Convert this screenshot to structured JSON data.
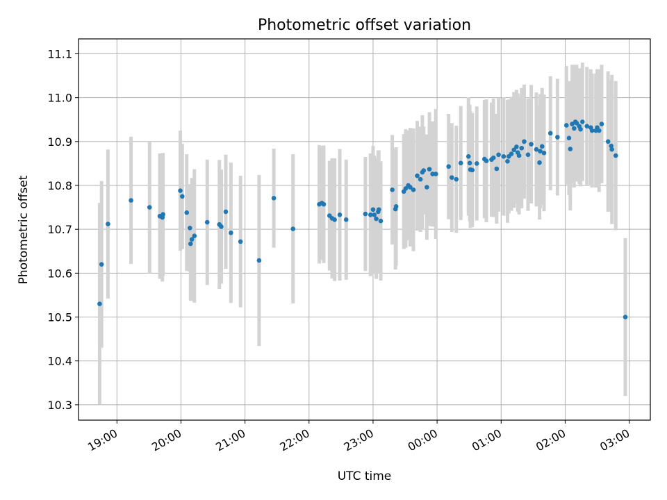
{
  "chart_data": {
    "type": "scatter",
    "title": "Photometric offset variation",
    "xlabel": "UTC time",
    "ylabel": "Photometric offset",
    "grid": true,
    "x_ticks": [
      "19:00",
      "20:00",
      "21:00",
      "22:00",
      "23:00",
      "00:00",
      "01:00",
      "02:00",
      "03:00"
    ],
    "y_ticks": [
      "10.3",
      "10.4",
      "10.5",
      "10.6",
      "10.7",
      "10.8",
      "10.9",
      "11.0",
      "11.1"
    ],
    "x_unit": "hours",
    "xlim": [
      18.4,
      27.33
    ],
    "ylim": [
      10.265,
      11.134
    ],
    "colors": {
      "point": "#1f77b4",
      "errorbar": "#d3d3d3",
      "grid": "#b0b0b0"
    },
    "series": [
      {
        "points": [
          {
            "x": 18.73,
            "y": 10.53,
            "err": 0.23
          },
          {
            "x": 18.76,
            "y": 10.62,
            "err": 0.19
          },
          {
            "x": 18.86,
            "y": 10.712,
            "err": 0.17
          },
          {
            "x": 19.22,
            "y": 10.766,
            "err": 0.145
          },
          {
            "x": 19.51,
            "y": 10.75,
            "err": 0.15
          },
          {
            "x": 19.67,
            "y": 10.73,
            "err": 0.143
          },
          {
            "x": 19.71,
            "y": 10.727,
            "err": 0.146
          },
          {
            "x": 19.72,
            "y": 10.734,
            "err": 0.14
          },
          {
            "x": 19.99,
            "y": 10.788,
            "err": 0.137
          },
          {
            "x": 20.02,
            "y": 10.775,
            "err": 0.12
          },
          {
            "x": 20.09,
            "y": 10.738,
            "err": 0.133
          },
          {
            "x": 20.14,
            "y": 10.703,
            "err": 0.1
          },
          {
            "x": 20.15,
            "y": 10.667,
            "err": 0.13
          },
          {
            "x": 20.17,
            "y": 10.677,
            "err": 0.14
          },
          {
            "x": 20.21,
            "y": 10.685,
            "err": 0.152
          },
          {
            "x": 20.41,
            "y": 10.716,
            "err": 0.143
          },
          {
            "x": 20.6,
            "y": 10.711,
            "err": 0.147
          },
          {
            "x": 20.63,
            "y": 10.706,
            "err": 0.13
          },
          {
            "x": 20.7,
            "y": 10.74,
            "err": 0.13
          },
          {
            "x": 20.78,
            "y": 10.692,
            "err": 0.16
          },
          {
            "x": 20.93,
            "y": 10.672,
            "err": 0.15
          },
          {
            "x": 21.22,
            "y": 10.629,
            "err": 0.195
          },
          {
            "x": 21.45,
            "y": 10.771,
            "err": 0.113
          },
          {
            "x": 21.75,
            "y": 10.701,
            "err": 0.17
          },
          {
            "x": 22.16,
            "y": 10.757,
            "err": 0.135
          },
          {
            "x": 22.2,
            "y": 10.76,
            "err": 0.13
          },
          {
            "x": 22.23,
            "y": 10.757,
            "err": 0.134
          },
          {
            "x": 22.32,
            "y": 10.731,
            "err": 0.125
          },
          {
            "x": 22.36,
            "y": 10.725,
            "err": 0.137
          },
          {
            "x": 22.4,
            "y": 10.722,
            "err": 0.14
          },
          {
            "x": 22.48,
            "y": 10.733,
            "err": 0.15
          },
          {
            "x": 22.58,
            "y": 10.722,
            "err": 0.137
          },
          {
            "x": 22.88,
            "y": 10.735,
            "err": 0.13
          },
          {
            "x": 22.96,
            "y": 10.733,
            "err": 0.14
          },
          {
            "x": 23.0,
            "y": 10.745,
            "err": 0.145
          },
          {
            "x": 23.02,
            "y": 10.733,
            "err": 0.135
          },
          {
            "x": 23.05,
            "y": 10.724,
            "err": 0.137
          },
          {
            "x": 23.08,
            "y": 10.74,
            "err": 0.14
          },
          {
            "x": 23.09,
            "y": 10.745,
            "err": 0.135
          },
          {
            "x": 23.12,
            "y": 10.719,
            "err": 0.136
          },
          {
            "x": 23.3,
            "y": 10.79,
            "err": 0.125
          },
          {
            "x": 23.35,
            "y": 10.746,
            "err": 0.138
          },
          {
            "x": 23.36,
            "y": 10.752,
            "err": 0.135
          },
          {
            "x": 23.48,
            "y": 10.786,
            "err": 0.131
          },
          {
            "x": 23.51,
            "y": 10.793,
            "err": 0.135
          },
          {
            "x": 23.55,
            "y": 10.8,
            "err": 0.125
          },
          {
            "x": 23.58,
            "y": 10.796,
            "err": 0.135
          },
          {
            "x": 23.63,
            "y": 10.79,
            "err": 0.14
          },
          {
            "x": 23.69,
            "y": 10.822,
            "err": 0.125
          },
          {
            "x": 23.74,
            "y": 10.814,
            "err": 0.12
          },
          {
            "x": 23.77,
            "y": 10.83,
            "err": 0.13
          },
          {
            "x": 23.79,
            "y": 10.834,
            "err": 0.1
          },
          {
            "x": 23.84,
            "y": 10.796,
            "err": 0.12
          },
          {
            "x": 23.88,
            "y": 10.837,
            "err": 0.13
          },
          {
            "x": 23.93,
            "y": 10.826,
            "err": 0.12
          },
          {
            "x": 23.98,
            "y": 10.826,
            "err": 0.148
          },
          {
            "x": 24.18,
            "y": 10.843,
            "err": 0.12
          },
          {
            "x": 24.23,
            "y": 10.818,
            "err": 0.124
          },
          {
            "x": 24.3,
            "y": 10.814,
            "err": 0.122
          },
          {
            "x": 24.37,
            "y": 10.851,
            "err": 0.13
          },
          {
            "x": 24.49,
            "y": 10.866,
            "err": 0.135
          },
          {
            "x": 24.51,
            "y": 10.851,
            "err": 0.133
          },
          {
            "x": 24.52,
            "y": 10.836,
            "err": 0.133
          },
          {
            "x": 24.55,
            "y": 10.835,
            "err": 0.13
          },
          {
            "x": 24.62,
            "y": 10.85,
            "err": 0.13
          },
          {
            "x": 24.74,
            "y": 10.86,
            "err": 0.135
          },
          {
            "x": 24.77,
            "y": 10.856,
            "err": 0.14
          },
          {
            "x": 24.85,
            "y": 10.859,
            "err": 0.13
          },
          {
            "x": 24.88,
            "y": 10.863,
            "err": 0.135
          },
          {
            "x": 24.93,
            "y": 10.838,
            "err": 0.125
          },
          {
            "x": 24.96,
            "y": 10.87,
            "err": 0.13
          },
          {
            "x": 25.04,
            "y": 10.866,
            "err": 0.135
          },
          {
            "x": 25.1,
            "y": 10.855,
            "err": 0.14
          },
          {
            "x": 25.12,
            "y": 10.866,
            "err": 0.13
          },
          {
            "x": 25.16,
            "y": 10.872,
            "err": 0.13
          },
          {
            "x": 25.2,
            "y": 10.881,
            "err": 0.132
          },
          {
            "x": 25.24,
            "y": 10.888,
            "err": 0.13
          },
          {
            "x": 25.26,
            "y": 10.875,
            "err": 0.135
          },
          {
            "x": 25.28,
            "y": 10.868,
            "err": 0.134
          },
          {
            "x": 25.32,
            "y": 10.885,
            "err": 0.137
          },
          {
            "x": 25.36,
            "y": 10.9,
            "err": 0.13
          },
          {
            "x": 25.42,
            "y": 10.87,
            "err": 0.128
          },
          {
            "x": 25.47,
            "y": 10.894,
            "err": 0.135
          },
          {
            "x": 25.55,
            "y": 10.882,
            "err": 0.13
          },
          {
            "x": 25.6,
            "y": 10.852,
            "err": 0.13
          },
          {
            "x": 25.61,
            "y": 10.878,
            "err": 0.13
          },
          {
            "x": 25.64,
            "y": 10.889,
            "err": 0.133
          },
          {
            "x": 25.67,
            "y": 10.874,
            "err": 0.133
          },
          {
            "x": 25.77,
            "y": 10.919,
            "err": 0.13
          },
          {
            "x": 25.88,
            "y": 10.91,
            "err": 0.133
          },
          {
            "x": 26.02,
            "y": 10.937,
            "err": 0.135
          },
          {
            "x": 26.06,
            "y": 10.908,
            "err": 0.13
          },
          {
            "x": 26.08,
            "y": 10.883,
            "err": 0.14
          },
          {
            "x": 26.11,
            "y": 10.94,
            "err": 0.135
          },
          {
            "x": 26.14,
            "y": 10.93,
            "err": 0.135
          },
          {
            "x": 26.16,
            "y": 10.945,
            "err": 0.13
          },
          {
            "x": 26.18,
            "y": 10.942,
            "err": 0.133
          },
          {
            "x": 26.22,
            "y": 10.935,
            "err": 0.132
          },
          {
            "x": 26.24,
            "y": 10.928,
            "err": 0.13
          },
          {
            "x": 26.27,
            "y": 10.945,
            "err": 0.135
          },
          {
            "x": 26.34,
            "y": 10.935,
            "err": 0.135
          },
          {
            "x": 26.4,
            "y": 10.932,
            "err": 0.133
          },
          {
            "x": 26.42,
            "y": 10.925,
            "err": 0.13
          },
          {
            "x": 26.48,
            "y": 10.925,
            "err": 0.13
          },
          {
            "x": 26.5,
            "y": 10.932,
            "err": 0.133
          },
          {
            "x": 26.53,
            "y": 10.925,
            "err": 0.14
          },
          {
            "x": 26.57,
            "y": 10.94,
            "err": 0.135
          },
          {
            "x": 26.67,
            "y": 10.9,
            "err": 0.16
          },
          {
            "x": 26.72,
            "y": 10.89,
            "err": 0.15
          },
          {
            "x": 26.73,
            "y": 10.882,
            "err": 0.17
          },
          {
            "x": 26.79,
            "y": 10.868,
            "err": 0.17
          },
          {
            "x": 26.94,
            "y": 10.5,
            "err": 0.18
          }
        ]
      }
    ]
  }
}
